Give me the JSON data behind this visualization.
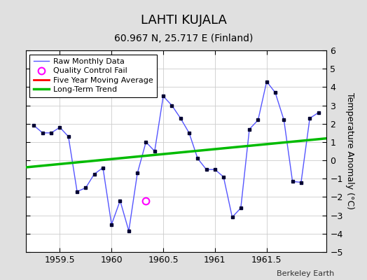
{
  "title": "LAHTI KUJALA",
  "subtitle": "60.967 N, 25.717 E (Finland)",
  "ylabel": "Temperature Anomaly (°C)",
  "credit": "Berkeley Earth",
  "xlim": [
    1959.17,
    1962.08
  ],
  "ylim": [
    -5,
    6
  ],
  "yticks": [
    -5,
    -4,
    -3,
    -2,
    -1,
    0,
    1,
    2,
    3,
    4,
    5,
    6
  ],
  "xticks": [
    1959.5,
    1960.0,
    1960.5,
    1961.0,
    1961.5
  ],
  "background_color": "#e0e0e0",
  "plot_bg_color": "#ffffff",
  "raw_x": [
    1959.25,
    1959.333,
    1959.417,
    1959.5,
    1959.583,
    1959.667,
    1959.75,
    1959.833,
    1959.917,
    1960.0,
    1960.083,
    1960.167,
    1960.25,
    1960.333,
    1960.417,
    1960.5,
    1960.583,
    1960.667,
    1960.75,
    1960.833,
    1960.917,
    1961.0,
    1961.083,
    1961.167,
    1961.25,
    1961.333,
    1961.417,
    1961.5,
    1961.583,
    1961.667,
    1961.75,
    1961.833,
    1961.917,
    1962.0
  ],
  "raw_y": [
    1.9,
    1.5,
    1.5,
    1.8,
    1.3,
    -1.7,
    -1.5,
    -0.75,
    -0.4,
    -3.5,
    -2.2,
    -3.85,
    -0.7,
    1.0,
    0.5,
    3.5,
    3.0,
    2.3,
    1.5,
    0.1,
    -0.5,
    -0.5,
    -0.9,
    -3.1,
    -2.6,
    1.7,
    2.2,
    4.3,
    3.7,
    2.2,
    -1.15,
    -1.2,
    2.3,
    2.6
  ],
  "qc_x": [
    1960.333
  ],
  "qc_y": [
    -2.2
  ],
  "trend_x": [
    1959.17,
    1962.08
  ],
  "trend_y": [
    -0.38,
    1.2
  ],
  "raw_line_color": "#5555ff",
  "dot_color": "#000033",
  "qc_color": "#ff00ff",
  "trend_color": "#00bb00",
  "ma_color": "#ff0000",
  "grid_color": "#cccccc",
  "title_fontsize": 13,
  "subtitle_fontsize": 10,
  "legend_fontsize": 8,
  "tick_fontsize": 9,
  "ylabel_fontsize": 9
}
